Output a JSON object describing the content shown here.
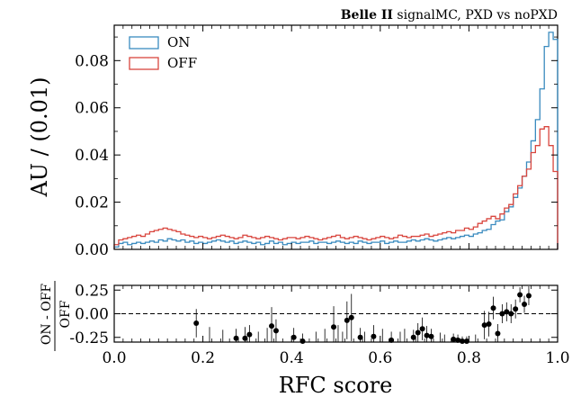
{
  "chart_data": [
    {
      "type": "step-histogram",
      "title_bold": "Belle II",
      "title_rest": " signalMC, PXD vs noPXD",
      "xlabel": "",
      "ylabel": "AU / (0.01)",
      "xlim": [
        0.0,
        1.0
      ],
      "ylim": [
        0.0,
        0.095
      ],
      "y_ticks": [
        "0.00",
        "0.02",
        "0.04",
        "0.06",
        "0.08"
      ],
      "y_tick_values": [
        0.0,
        0.02,
        0.04,
        0.06,
        0.08
      ],
      "legend_position": "top-left",
      "bin_width": 0.01,
      "colors": {
        "ON": "#3a8bbf",
        "OFF": "#d9463e"
      },
      "series": [
        {
          "name": "ON",
          "values": [
            0.001,
            0.0025,
            0.003,
            0.002,
            0.0025,
            0.003,
            0.0025,
            0.003,
            0.0035,
            0.003,
            0.004,
            0.0035,
            0.0045,
            0.004,
            0.0035,
            0.004,
            0.003,
            0.0035,
            0.0025,
            0.003,
            0.0025,
            0.003,
            0.0035,
            0.004,
            0.0035,
            0.003,
            0.0035,
            0.0025,
            0.003,
            0.0035,
            0.003,
            0.0025,
            0.003,
            0.002,
            0.0025,
            0.0035,
            0.0025,
            0.003,
            0.002,
            0.0025,
            0.003,
            0.0025,
            0.003,
            0.003,
            0.0035,
            0.0025,
            0.003,
            0.003,
            0.0025,
            0.003,
            0.0035,
            0.003,
            0.0025,
            0.003,
            0.0025,
            0.0035,
            0.003,
            0.0025,
            0.003,
            0.003,
            0.0035,
            0.0025,
            0.003,
            0.0035,
            0.003,
            0.003,
            0.0035,
            0.004,
            0.0035,
            0.004,
            0.0045,
            0.004,
            0.0035,
            0.004,
            0.0045,
            0.005,
            0.0045,
            0.005,
            0.0055,
            0.006,
            0.0055,
            0.0065,
            0.007,
            0.008,
            0.0085,
            0.0105,
            0.012,
            0.0125,
            0.016,
            0.018,
            0.022,
            0.026,
            0.031,
            0.037,
            0.046,
            0.055,
            0.068,
            0.086,
            0.092,
            0.089
          ]
        },
        {
          "name": "OFF",
          "values": [
            0.002,
            0.004,
            0.0045,
            0.005,
            0.0055,
            0.006,
            0.0055,
            0.0065,
            0.0075,
            0.008,
            0.0085,
            0.009,
            0.0085,
            0.008,
            0.0075,
            0.0065,
            0.006,
            0.0055,
            0.005,
            0.0055,
            0.005,
            0.0045,
            0.005,
            0.0055,
            0.006,
            0.0055,
            0.005,
            0.0045,
            0.005,
            0.006,
            0.0055,
            0.005,
            0.0045,
            0.005,
            0.0055,
            0.005,
            0.0045,
            0.004,
            0.0045,
            0.005,
            0.005,
            0.0045,
            0.005,
            0.0055,
            0.005,
            0.0045,
            0.004,
            0.0045,
            0.005,
            0.0055,
            0.006,
            0.005,
            0.0045,
            0.005,
            0.0055,
            0.005,
            0.0045,
            0.004,
            0.0045,
            0.005,
            0.0055,
            0.005,
            0.0045,
            0.005,
            0.006,
            0.0055,
            0.005,
            0.0055,
            0.0055,
            0.006,
            0.0065,
            0.0055,
            0.006,
            0.0065,
            0.007,
            0.0075,
            0.007,
            0.008,
            0.008,
            0.009,
            0.0085,
            0.0095,
            0.011,
            0.012,
            0.013,
            0.014,
            0.013,
            0.015,
            0.0175,
            0.019,
            0.0235,
            0.027,
            0.031,
            0.034,
            0.041,
            0.044,
            0.051,
            0.052,
            0.044,
            0.033
          ]
        }
      ]
    },
    {
      "type": "scatter-errorbar",
      "xlabel": "RFC score",
      "ylabel_numerator": "ON - OFF",
      "ylabel_denominator": "OFF",
      "xlim": [
        0.0,
        1.0
      ],
      "ylim": [
        -0.3,
        0.3
      ],
      "x_ticks": [
        "0.0",
        "0.2",
        "0.4",
        "0.6",
        "0.8",
        "1.0"
      ],
      "x_tick_values": [
        0.0,
        0.2,
        0.4,
        0.6,
        0.8,
        1.0
      ],
      "y_ticks": [
        "0.25",
        "0.00",
        "-0.25"
      ],
      "y_tick_values": [
        0.25,
        0.0,
        -0.25
      ],
      "reference_line": 0.0,
      "points": [
        {
          "x": 0.185,
          "y": -0.1,
          "err": 0.15
        },
        {
          "x": 0.275,
          "y": -0.26,
          "err": 0.1
        },
        {
          "x": 0.295,
          "y": -0.26,
          "err": 0.12
        },
        {
          "x": 0.305,
          "y": -0.22,
          "err": 0.1
        },
        {
          "x": 0.355,
          "y": -0.13,
          "err": 0.2
        },
        {
          "x": 0.365,
          "y": -0.18,
          "err": 0.12
        },
        {
          "x": 0.405,
          "y": -0.25,
          "err": 0.1
        },
        {
          "x": 0.425,
          "y": -0.29,
          "err": 0.08
        },
        {
          "x": 0.495,
          "y": -0.14,
          "err": 0.22
        },
        {
          "x": 0.525,
          "y": -0.07,
          "err": 0.2
        },
        {
          "x": 0.535,
          "y": -0.04,
          "err": 0.25
        },
        {
          "x": 0.555,
          "y": -0.25,
          "err": 0.1
        },
        {
          "x": 0.585,
          "y": -0.24,
          "err": 0.12
        },
        {
          "x": 0.625,
          "y": -0.28,
          "err": 0.09
        },
        {
          "x": 0.675,
          "y": -0.25,
          "err": 0.08
        },
        {
          "x": 0.685,
          "y": -0.2,
          "err": 0.1
        },
        {
          "x": 0.695,
          "y": -0.16,
          "err": 0.12
        },
        {
          "x": 0.705,
          "y": -0.23,
          "err": 0.1
        },
        {
          "x": 0.715,
          "y": -0.24,
          "err": 0.08
        },
        {
          "x": 0.765,
          "y": -0.27,
          "err": 0.06
        },
        {
          "x": 0.775,
          "y": -0.28,
          "err": 0.06
        },
        {
          "x": 0.785,
          "y": -0.29,
          "err": 0.05
        },
        {
          "x": 0.795,
          "y": -0.29,
          "err": 0.05
        },
        {
          "x": 0.835,
          "y": -0.12,
          "err": 0.15
        },
        {
          "x": 0.845,
          "y": -0.11,
          "err": 0.13
        },
        {
          "x": 0.855,
          "y": 0.06,
          "err": 0.12
        },
        {
          "x": 0.865,
          "y": -0.21,
          "err": 0.1
        },
        {
          "x": 0.875,
          "y": 0.0,
          "err": 0.1
        },
        {
          "x": 0.885,
          "y": 0.02,
          "err": 0.1
        },
        {
          "x": 0.895,
          "y": 0.0,
          "err": 0.1
        },
        {
          "x": 0.905,
          "y": 0.05,
          "err": 0.1
        },
        {
          "x": 0.915,
          "y": 0.2,
          "err": 0.08
        },
        {
          "x": 0.925,
          "y": 0.1,
          "err": 0.09
        },
        {
          "x": 0.935,
          "y": 0.19,
          "err": 0.1
        }
      ],
      "error_only": [
        {
          "x": 0.215,
          "err": 0.12,
          "y": -0.26
        },
        {
          "x": 0.245,
          "err": 0.1,
          "y": -0.27
        },
        {
          "x": 0.325,
          "err": 0.08,
          "y": -0.27
        },
        {
          "x": 0.345,
          "err": 0.1,
          "y": -0.25
        },
        {
          "x": 0.455,
          "err": 0.08,
          "y": -0.27
        },
        {
          "x": 0.475,
          "err": 0.1,
          "y": -0.26
        },
        {
          "x": 0.505,
          "err": 0.12,
          "y": -0.24
        },
        {
          "x": 0.515,
          "err": 0.08,
          "y": -0.27
        },
        {
          "x": 0.565,
          "err": 0.08,
          "y": -0.27
        },
        {
          "x": 0.605,
          "err": 0.1,
          "y": -0.26
        },
        {
          "x": 0.645,
          "err": 0.08,
          "y": -0.27
        },
        {
          "x": 0.655,
          "err": 0.1,
          "y": -0.26
        },
        {
          "x": 0.735,
          "err": 0.07,
          "y": -0.27
        },
        {
          "x": 0.745,
          "err": 0.06,
          "y": -0.28
        },
        {
          "x": 0.815,
          "err": 0.06,
          "y": -0.28
        }
      ]
    }
  ]
}
